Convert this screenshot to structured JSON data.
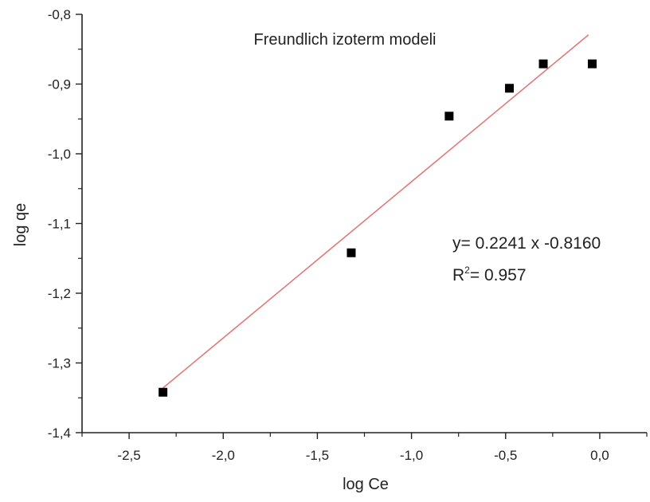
{
  "chart_data": {
    "type": "scatter",
    "title": "Freundlich izoterm modeli",
    "xlabel": "log Ce",
    "ylabel": "log qe",
    "xlim": [
      -2.75,
      0.25
    ],
    "ylim": [
      -1.4,
      -0.8
    ],
    "x_ticks": [
      -2.5,
      -2.0,
      -1.5,
      -1.0,
      -0.5,
      0.0
    ],
    "x_tick_labels": [
      "-2,5",
      "-2,0",
      "-1,5",
      "-1,0",
      "-0,5",
      "0,0"
    ],
    "y_ticks": [
      -0.8,
      -0.9,
      -1.0,
      -1.1,
      -1.2,
      -1.3,
      -1.4
    ],
    "y_tick_labels": [
      "-0,8",
      "-0,9",
      "-1,0",
      "-1,1",
      "-1,2",
      "-1,3",
      "-1,4"
    ],
    "grid": false,
    "points": {
      "x": [
        -2.32,
        -1.32,
        -0.8,
        -0.48,
        -0.3,
        -0.04
      ],
      "y": [
        -1.342,
        -1.142,
        -0.946,
        -0.906,
        -0.871,
        -0.871
      ]
    },
    "fit_line": {
      "slope": 0.2241,
      "intercept": -0.816,
      "x_range": [
        -2.32,
        -0.06
      ],
      "color": "#e07a7a"
    },
    "annotations": {
      "equation": "y= 0.2241 x -0.8160",
      "r2_prefix": "R",
      "r2_sup": "2",
      "r2_value": "= 0.957"
    },
    "marker_color": "#000000"
  }
}
